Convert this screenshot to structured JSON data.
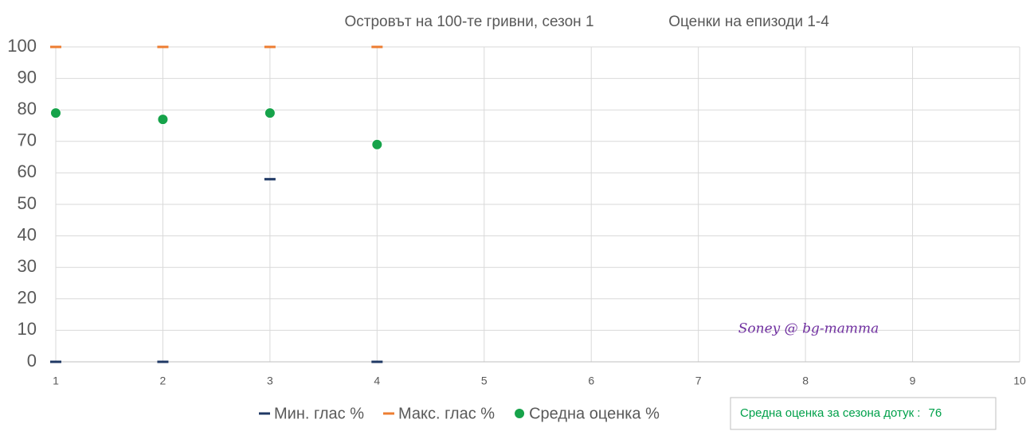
{
  "chart_data": {
    "type": "scatter",
    "title": "Островът на 100-те гривни, сезон 1",
    "subtitle": "Оценки на епизоди 1-4",
    "x": [
      1,
      2,
      3,
      4
    ],
    "series": [
      {
        "name": "Мин. глас %",
        "color": "#1f3864",
        "marker": "dash",
        "values": [
          0,
          0,
          58,
          0
        ]
      },
      {
        "name": "Макс. глас %",
        "color": "#ed7d31",
        "marker": "dash",
        "values": [
          100,
          100,
          100,
          100
        ]
      },
      {
        "name": "Средна оценка %",
        "color": "#16a34a",
        "marker": "circle",
        "values": [
          79,
          77,
          79,
          69
        ]
      }
    ],
    "xlim": [
      1,
      10
    ],
    "xticks": [
      1,
      2,
      3,
      4,
      5,
      6,
      7,
      8,
      9,
      10
    ],
    "ylim": [
      0,
      100
    ],
    "yticks": [
      0,
      10,
      20,
      30,
      40,
      50,
      60,
      70,
      80,
      90,
      100
    ],
    "grid": true,
    "legend": "bottom",
    "annotation": "Soney @ bg-mamma",
    "summary": {
      "label": "Средна оценка за сезона дотук :",
      "value": 76
    }
  }
}
